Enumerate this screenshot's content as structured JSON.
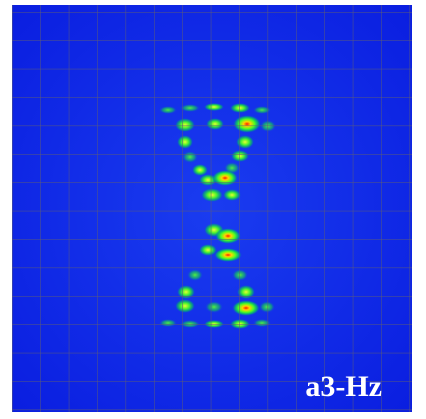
{
  "label": "a3-Hz"
}
